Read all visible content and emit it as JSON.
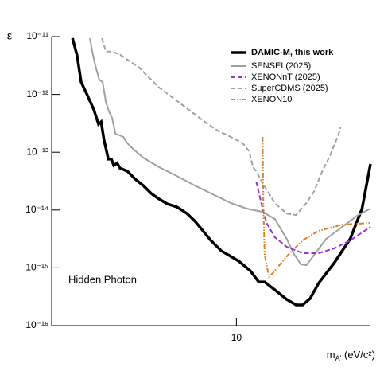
{
  "chart_data": {
    "type": "line",
    "y_label": "ε",
    "x_label": [
      "m",
      "A'",
      " (eV/c²)"
    ],
    "annotation": "Hidden Photon",
    "xscale": "log",
    "yscale": "log",
    "xlim": [
      2.2,
      30
    ],
    "ylim": [
      1e-16,
      1e-11
    ],
    "xticks": [
      10
    ],
    "yticks": [
      {
        "value": 1e-16,
        "label": "10⁻¹⁶"
      },
      {
        "value": 1e-15,
        "label": "10⁻¹⁵"
      },
      {
        "value": 1e-14,
        "label": "10⁻¹⁴"
      },
      {
        "value": 1e-13,
        "label": "10⁻¹³"
      },
      {
        "value": 1e-12,
        "label": "10⁻¹²"
      },
      {
        "value": 1e-11,
        "label": "10⁻¹¹"
      }
    ],
    "legend": "upper right",
    "series": [
      {
        "name": "DAMIC-M, this work",
        "color": "#000000",
        "line_style": "solid",
        "x": [
          2.61,
          2.71,
          2.8,
          2.95,
          3.11,
          3.23,
          3.3,
          3.38,
          3.5,
          3.59,
          3.66,
          3.76,
          3.85,
          4.09,
          4.36,
          4.66,
          4.97,
          5.31,
          5.67,
          6.13,
          6.67,
          7.12,
          7.6,
          8.11,
          8.83,
          10.19,
          11.2,
          12.0,
          12.6,
          13.7,
          15.1,
          16.3,
          17.2,
          18.3,
          19.6,
          22.3,
          25.4,
          28.0,
          30
        ],
        "values": [
          9.4e-12,
          4.7e-12,
          1.64e-12,
          9.6e-13,
          5.4e-13,
          3.06e-13,
          3.36e-13,
          1.62e-13,
          7.6e-14,
          7.6e-14,
          5.9e-14,
          6.5e-14,
          5.3e-14,
          4.7e-14,
          3.42e-14,
          2.65e-14,
          1.94e-14,
          1.55e-14,
          1.28e-14,
          1.13e-14,
          8.7e-15,
          6.4e-15,
          4.35e-15,
          2.98e-15,
          1.97e-15,
          1.31e-15,
          8.9e-16,
          5.7e-16,
          5.7e-16,
          4.17e-16,
          2.85e-16,
          2.28e-16,
          2.28e-16,
          2.94e-16,
          5.4e-16,
          1.22e-15,
          3.17e-15,
          1.06e-14,
          6.25e-14
        ]
      },
      {
        "name": "SENSEI (2025)",
        "color": "#a0a0a0",
        "line_style": "solid",
        "x": [
          3.01,
          3.07,
          3.15,
          3.25,
          3.34,
          3.43,
          3.52,
          3.61,
          3.71,
          3.83,
          3.96,
          4.09,
          4.31,
          4.66,
          5.31,
          6.05,
          7.12,
          8.11,
          9.55,
          10.88,
          12.39,
          13.7,
          15.1,
          16.09,
          16.95,
          17.74,
          18.93,
          20.88,
          23.79,
          27.11,
          30
        ],
        "values": [
          9.4e-12,
          5.5e-12,
          3.09e-12,
          1.8e-12,
          1.64e-12,
          7.4e-13,
          5.07e-13,
          3.94e-13,
          2.09e-13,
          1.96e-13,
          1.84e-13,
          1.43e-13,
          1.11e-13,
          8.05e-14,
          5.5e-14,
          4.01e-14,
          2.65e-14,
          1.94e-14,
          1.32e-14,
          1.06e-14,
          9.3e-15,
          7e-15,
          3.17e-15,
          1.68e-15,
          1.15e-15,
          1.11e-15,
          1.68e-15,
          3.17e-15,
          5.1e-15,
          8.2e-15,
          1.06e-14
        ]
      },
      {
        "name": "XENONnT (2025)",
        "color": "#9b30d9",
        "line_style": "dashed",
        "x": [
          11.76,
          12.07,
          12.39,
          12.8,
          13.7,
          15.1,
          17.2,
          19.6,
          22.3,
          25.4,
          30
        ],
        "values": [
          3.11e-14,
          1.82e-14,
          1.06e-14,
          5.98e-15,
          3.38e-15,
          2.31e-15,
          1.79e-15,
          1.79e-15,
          2.17e-15,
          2.98e-15,
          5.1e-15
        ]
      },
      {
        "name": "SuperCDMS (2025)",
        "color": "#a0a0a0",
        "line_style": "dashed",
        "x": [
          3.32,
          3.43,
          3.59,
          3.83,
          4.09,
          4.51,
          4.81,
          5.31,
          6.05,
          6.89,
          7.85,
          8.66,
          9.55,
          10.53,
          11.09,
          11.46,
          11.76,
          12.39,
          13.7,
          15.1,
          16.3,
          17.74,
          18.93,
          20.21,
          21.58,
          23.02,
          23.48
        ],
        "values": [
          9.4e-12,
          5.5e-12,
          5.5e-12,
          4.98e-12,
          3.99e-12,
          2.9e-12,
          2.11e-12,
          1.31e-12,
          8.2e-13,
          5.07e-13,
          3.16e-13,
          2.3e-13,
          1.84e-13,
          1.43e-13,
          1.04e-13,
          5.5e-14,
          4.7e-14,
          2.92e-14,
          1.32e-14,
          8.7e-15,
          8.2e-15,
          1.32e-14,
          2.13e-14,
          4.7e-14,
          8.87e-14,
          1.96e-13,
          2.69e-13
        ]
      },
      {
        "name": "XENON10",
        "color": "#d9822b",
        "line_style": "dash-dot",
        "x": [
          12.39,
          12.47,
          12.6,
          13.06,
          13.7,
          15.1,
          17.2,
          19.6,
          23.79,
          30
        ],
        "values": [
          1.84e-13,
          1.13e-14,
          1.68e-15,
          6.9e-16,
          8.9e-16,
          1.58e-15,
          2.98e-15,
          4.35e-15,
          5.6e-15,
          5.98e-15
        ]
      }
    ]
  }
}
